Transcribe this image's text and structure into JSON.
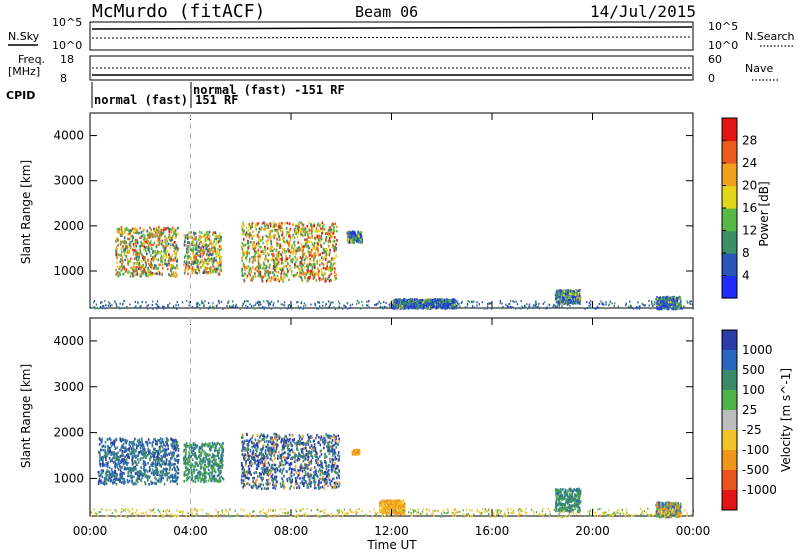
{
  "header": {
    "station": "McMurdo (fitACF)",
    "beam": "Beam 06",
    "date": "14/Jul/2015"
  },
  "top_panels": {
    "nsky_label": "N.Sky",
    "nsearch_label": "N.Search",
    "noise_ticks": [
      "10^5",
      "10^0"
    ],
    "freq_label": "Freq.",
    "freq_unit": "[MHz]",
    "freq_ticks": [
      "18",
      "8"
    ],
    "nave_ticks": [
      "60",
      "0"
    ],
    "nave_label": "Nave",
    "cpid_label": "CPID",
    "cpid_segments": [
      {
        "label": "normal (fast) 151 RF",
        "start_hour": 0.0,
        "end_hour": 4.0
      },
      {
        "label": "normal (fast) -151 RF",
        "start_hour": 4.0,
        "end_hour": 24.0
      }
    ]
  },
  "x_axis": {
    "ticks": [
      "00:00",
      "04:00",
      "08:00",
      "12:00",
      "16:00",
      "20:00",
      "00:00"
    ],
    "tick_hours": [
      0,
      4,
      8,
      12,
      16,
      20,
      24
    ],
    "label": "Time UT"
  },
  "chart_data": [
    {
      "type": "heatmap",
      "name": "power",
      "ylabel": "Slant Range [km]",
      "yticks": [
        "1000",
        "2000",
        "3000",
        "4000"
      ],
      "ylim": [
        180,
        4500
      ],
      "xlim": [
        0,
        24
      ],
      "colorbar": {
        "label": "Power [dB]",
        "ticks": [
          "4",
          "8",
          "12",
          "16",
          "20",
          "24",
          "28"
        ],
        "range": [
          0,
          32
        ],
        "colors": [
          "#1e2cff",
          "#2a55b8",
          "#3a8f67",
          "#56b845",
          "#e3d51a",
          "#f0a11e",
          "#ea5a1c",
          "#e01616"
        ]
      },
      "blobs": [
        {
          "h0": 1.0,
          "h1": 3.5,
          "r0": 900,
          "r1": 2000,
          "level": 0.55
        },
        {
          "h0": 3.7,
          "h1": 5.2,
          "r0": 950,
          "r1": 1900,
          "level": 0.5
        },
        {
          "h0": 6.0,
          "h1": 9.8,
          "r0": 800,
          "r1": 2100,
          "level": 0.6
        },
        {
          "h0": 10.2,
          "h1": 10.8,
          "r0": 1650,
          "r1": 1900,
          "level": 0.25
        },
        {
          "h0": 12.0,
          "h1": 14.5,
          "r0": 200,
          "r1": 400,
          "level": 0.2
        },
        {
          "h0": 18.5,
          "h1": 19.5,
          "r0": 300,
          "r1": 600,
          "level": 0.3
        },
        {
          "h0": 22.5,
          "h1": 23.5,
          "r0": 180,
          "r1": 450,
          "level": 0.25
        }
      ]
    },
    {
      "type": "heatmap",
      "name": "velocity",
      "ylabel": "Slant Range [km]",
      "yticks": [
        "1000",
        "2000",
        "3000",
        "4000"
      ],
      "ylim": [
        180,
        4500
      ],
      "xlim": [
        0,
        24
      ],
      "colorbar": {
        "label": "Velocity [m s^-1]",
        "ticks": [
          "1000",
          "500",
          "100",
          "25",
          "-25",
          "-100",
          "-500",
          "-1000"
        ],
        "colors": [
          "#2a3ca8",
          "#2a68c0",
          "#3a8a6a",
          "#4fb24b",
          "#bdbdbd",
          "#f0c328",
          "#f0961e",
          "#e8551c",
          "#e01616"
        ]
      },
      "blobs": [
        {
          "h0": 0.3,
          "h1": 3.5,
          "r0": 900,
          "r1": 1900,
          "class": "blue-green"
        },
        {
          "h0": 3.7,
          "h1": 5.3,
          "r0": 950,
          "r1": 1800,
          "class": "green"
        },
        {
          "h0": 6.0,
          "h1": 9.9,
          "r0": 800,
          "r1": 2000,
          "class": "blue-green-orange"
        },
        {
          "h0": 10.4,
          "h1": 10.7,
          "r0": 1550,
          "r1": 1650,
          "class": "orange"
        },
        {
          "h0": 11.5,
          "h1": 12.5,
          "r0": 250,
          "r1": 550,
          "class": "orange"
        },
        {
          "h0": 18.5,
          "h1": 19.5,
          "r0": 300,
          "r1": 800,
          "class": "green"
        },
        {
          "h0": 22.5,
          "h1": 23.5,
          "r0": 180,
          "r1": 500,
          "class": "mixed"
        }
      ]
    }
  ]
}
